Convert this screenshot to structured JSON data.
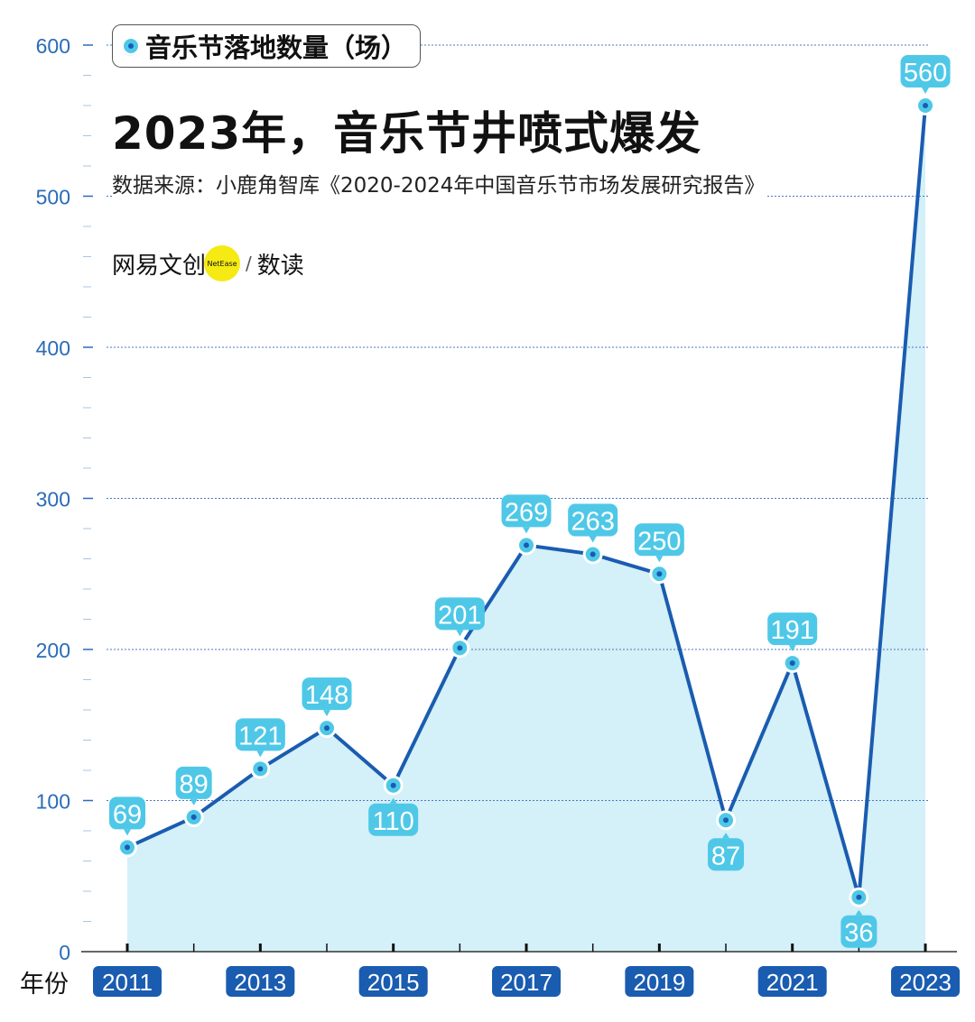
{
  "chart_data": {
    "type": "line",
    "title": "2023年，音乐节井喷式爆发",
    "source": "数据来源：小鹿角智库《2020-2024年中国音乐节市场发展研究报告》",
    "legend": "音乐节落地数量（场）",
    "xlabel": "年份",
    "ylabel": "",
    "ylim": [
      0,
      600
    ],
    "yticks": [
      0,
      100,
      200,
      300,
      400,
      500,
      600
    ],
    "x": [
      2011,
      2012,
      2013,
      2014,
      2015,
      2016,
      2017,
      2018,
      2019,
      2020,
      2021,
      2022,
      2023
    ],
    "xtick_labels": [
      "2011",
      "2013",
      "2015",
      "2017",
      "2019",
      "2021",
      "2023"
    ],
    "series": [
      {
        "name": "音乐节落地数量（场）",
        "values": [
          69,
          89,
          121,
          148,
          110,
          201,
          269,
          263,
          250,
          87,
          191,
          36,
          560
        ]
      }
    ],
    "grid": true,
    "legend_position": "top-left"
  },
  "brand": {
    "name": "网易文创",
    "logo_text": "NetEase",
    "column": "数读"
  },
  "colors": {
    "line": "#1a5cb0",
    "fill": "#d4f0f8",
    "label": "#4fc8e8",
    "axis_text": "#2a6cb8"
  }
}
